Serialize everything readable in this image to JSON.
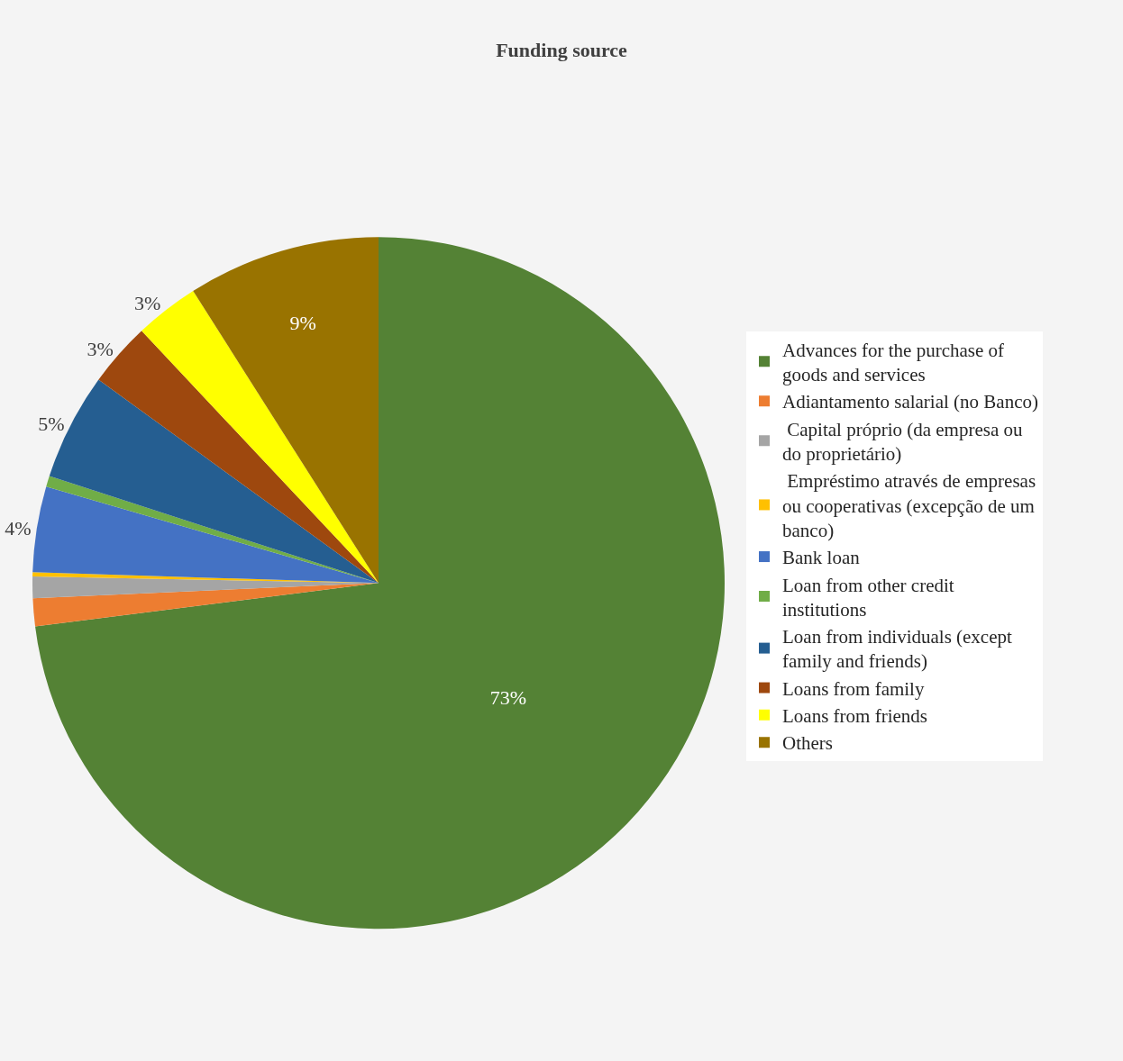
{
  "chart_data": {
    "type": "pie",
    "title": "Funding source",
    "categories": [
      "Advances for the purchase of goods and services",
      "Adiantamento salarial (no Banco)",
      " Capital próprio (da empresa ou do proprietário)",
      " Empréstimo através de empresas ou cooperativas (excepção de um banco)",
      "Bank loan",
      "Loan from other credit institutions",
      "Loan from individuals (except family and friends)",
      "Loans from family",
      "Loans from friends",
      "Others"
    ],
    "values": [
      73,
      1.3,
      1.0,
      0.2,
      4,
      0.5,
      5,
      3,
      3,
      9
    ],
    "value_labels": [
      "73%",
      null,
      null,
      null,
      "4%",
      null,
      "5%",
      "3%",
      "3%",
      "9%"
    ],
    "colors": [
      "#548235",
      "#ed7d31",
      "#a5a5a5",
      "#ffc000",
      "#4472c4",
      "#70ad47",
      "#255e91",
      "#9e480e",
      "#ffff00",
      "#997300"
    ],
    "legend": "right"
  }
}
